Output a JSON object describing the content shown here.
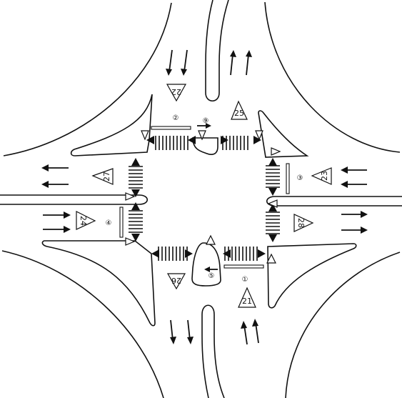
{
  "title": "",
  "sign_labels": {
    "north_approach": "22",
    "north_island": "25",
    "west_exit": "27",
    "west_approach": "24",
    "east_approach": "23",
    "east_exit": "28",
    "south_exit": "26",
    "south_approach": "21"
  },
  "index_labels": {
    "south_approach": "①",
    "north_approach": "②",
    "east_approach": "③",
    "west_approach": "④",
    "south_island": "⑤",
    "north_island": "⑨"
  }
}
